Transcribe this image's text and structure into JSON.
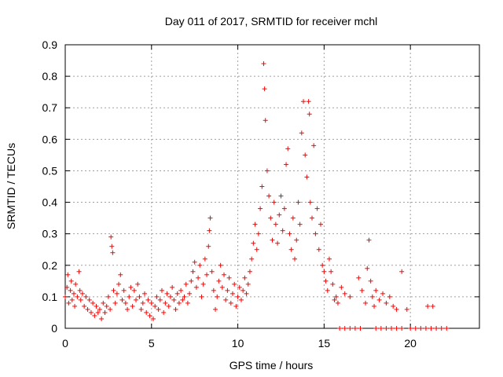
{
  "chart_data": {
    "type": "scatter",
    "title": "Day 011 of 2017, SRMTID for receiver mchl",
    "xlabel": "GPS time / hours",
    "ylabel": "SRMTID / TECUs",
    "xlim": [
      0,
      24
    ],
    "ylim": [
      0,
      0.9
    ],
    "xticks": [
      0,
      5,
      10,
      15,
      20
    ],
    "xtick_labels": [
      "0",
      "5",
      "10",
      "15",
      "20"
    ],
    "yticks": [
      0,
      0.1,
      0.2,
      0.3,
      0.4,
      0.5,
      0.6,
      0.7,
      0.8,
      0.9
    ],
    "ytick_labels": [
      "0",
      "0.1",
      "0.2",
      "0.3",
      "0.4",
      "0.5",
      "0.6",
      "0.7",
      "0.8",
      "0.9"
    ],
    "grid": true,
    "marker": "+",
    "series": [
      {
        "name": "SRMTID",
        "color": "#ff0000",
        "points": [
          [
            0.0,
            0.1
          ],
          [
            0.1,
            0.13
          ],
          [
            0.15,
            0.17
          ],
          [
            0.2,
            0.08
          ],
          [
            0.3,
            0.12
          ],
          [
            0.35,
            0.15
          ],
          [
            0.4,
            0.09
          ],
          [
            0.5,
            0.11
          ],
          [
            0.55,
            0.07
          ],
          [
            0.6,
            0.14
          ],
          [
            0.7,
            0.1
          ],
          [
            0.8,
            0.18
          ],
          [
            0.85,
            0.12
          ],
          [
            0.9,
            0.09
          ],
          [
            1.0,
            0.11
          ],
          [
            1.1,
            0.07
          ],
          [
            1.2,
            0.1
          ],
          [
            1.3,
            0.06
          ],
          [
            1.4,
            0.09
          ],
          [
            1.5,
            0.05
          ],
          [
            1.6,
            0.08
          ],
          [
            1.7,
            0.04
          ],
          [
            1.8,
            0.07
          ],
          [
            1.9,
            0.05
          ],
          [
            2.0,
            0.06
          ],
          [
            2.1,
            0.03
          ],
          [
            2.2,
            0.08
          ],
          [
            2.3,
            0.05
          ],
          [
            2.4,
            0.07
          ],
          [
            2.5,
            0.1
          ],
          [
            2.6,
            0.06
          ],
          [
            2.65,
            0.29
          ],
          [
            2.7,
            0.26
          ],
          [
            2.75,
            0.24
          ],
          [
            2.8,
            0.12
          ],
          [
            2.9,
            0.08
          ],
          [
            3.0,
            0.11
          ],
          [
            3.1,
            0.14
          ],
          [
            3.2,
            0.17
          ],
          [
            3.3,
            0.09
          ],
          [
            3.4,
            0.12
          ],
          [
            3.5,
            0.08
          ],
          [
            3.6,
            0.06
          ],
          [
            3.7,
            0.1
          ],
          [
            3.8,
            0.13
          ],
          [
            3.9,
            0.07
          ],
          [
            4.0,
            0.12
          ],
          [
            4.1,
            0.09
          ],
          [
            4.2,
            0.14
          ],
          [
            4.3,
            0.1
          ],
          [
            4.4,
            0.06
          ],
          [
            4.5,
            0.08
          ],
          [
            4.6,
            0.11
          ],
          [
            4.7,
            0.05
          ],
          [
            4.8,
            0.09
          ],
          [
            4.9,
            0.04
          ],
          [
            5.0,
            0.08
          ],
          [
            5.1,
            0.03
          ],
          [
            5.2,
            0.07
          ],
          [
            5.3,
            0.1
          ],
          [
            5.4,
            0.06
          ],
          [
            5.5,
            0.09
          ],
          [
            5.6,
            0.12
          ],
          [
            5.7,
            0.05
          ],
          [
            5.8,
            0.08
          ],
          [
            5.9,
            0.11
          ],
          [
            6.0,
            0.07
          ],
          [
            6.1,
            0.1
          ],
          [
            6.2,
            0.13
          ],
          [
            6.3,
            0.09
          ],
          [
            6.4,
            0.06
          ],
          [
            6.5,
            0.11
          ],
          [
            6.6,
            0.08
          ],
          [
            6.7,
            0.12
          ],
          [
            6.8,
            0.09
          ],
          [
            6.9,
            0.1
          ],
          [
            7.0,
            0.14
          ],
          [
            7.1,
            0.08
          ],
          [
            7.2,
            0.11
          ],
          [
            7.3,
            0.15
          ],
          [
            7.4,
            0.18
          ],
          [
            7.5,
            0.21
          ],
          [
            7.6,
            0.13
          ],
          [
            7.7,
            0.16
          ],
          [
            7.8,
            0.2
          ],
          [
            7.9,
            0.1
          ],
          [
            8.0,
            0.14
          ],
          [
            8.1,
            0.22
          ],
          [
            8.2,
            0.17
          ],
          [
            8.3,
            0.26
          ],
          [
            8.35,
            0.31
          ],
          [
            8.4,
            0.35
          ],
          [
            8.5,
            0.18
          ],
          [
            8.6,
            0.12
          ],
          [
            8.7,
            0.06
          ],
          [
            8.8,
            0.1
          ],
          [
            8.9,
            0.15
          ],
          [
            9.0,
            0.2
          ],
          [
            9.1,
            0.13
          ],
          [
            9.2,
            0.17
          ],
          [
            9.3,
            0.09
          ],
          [
            9.4,
            0.12
          ],
          [
            9.5,
            0.16
          ],
          [
            9.6,
            0.08
          ],
          [
            9.7,
            0.11
          ],
          [
            9.8,
            0.14
          ],
          [
            9.9,
            0.07
          ],
          [
            10.0,
            0.1
          ],
          [
            10.1,
            0.13
          ],
          [
            10.2,
            0.09
          ],
          [
            10.3,
            0.12
          ],
          [
            10.4,
            0.16
          ],
          [
            10.5,
            0.11
          ],
          [
            10.6,
            0.14
          ],
          [
            10.7,
            0.18
          ],
          [
            10.8,
            0.22
          ],
          [
            10.9,
            0.27
          ],
          [
            11.0,
            0.33
          ],
          [
            11.1,
            0.25
          ],
          [
            11.2,
            0.3
          ],
          [
            11.3,
            0.38
          ],
          [
            11.4,
            0.45
          ],
          [
            11.5,
            0.84
          ],
          [
            11.55,
            0.76
          ],
          [
            11.6,
            0.66
          ],
          [
            11.7,
            0.5
          ],
          [
            11.8,
            0.42
          ],
          [
            11.9,
            0.35
          ],
          [
            12.0,
            0.28
          ],
          [
            12.1,
            0.4
          ],
          [
            12.2,
            0.33
          ],
          [
            12.3,
            0.27
          ],
          [
            12.4,
            0.36
          ],
          [
            12.5,
            0.42
          ],
          [
            12.6,
            0.31
          ],
          [
            12.7,
            0.38
          ],
          [
            12.8,
            0.52
          ],
          [
            12.9,
            0.57
          ],
          [
            13.0,
            0.3
          ],
          [
            13.1,
            0.25
          ],
          [
            13.2,
            0.35
          ],
          [
            13.3,
            0.22
          ],
          [
            13.4,
            0.28
          ],
          [
            13.5,
            0.4
          ],
          [
            13.6,
            0.33
          ],
          [
            13.7,
            0.62
          ],
          [
            13.8,
            0.72
          ],
          [
            13.9,
            0.55
          ],
          [
            14.0,
            0.48
          ],
          [
            14.1,
            0.72
          ],
          [
            14.15,
            0.68
          ],
          [
            14.2,
            0.4
          ],
          [
            14.3,
            0.35
          ],
          [
            14.4,
            0.58
          ],
          [
            14.5,
            0.3
          ],
          [
            14.6,
            0.38
          ],
          [
            14.7,
            0.25
          ],
          [
            14.8,
            0.33
          ],
          [
            14.9,
            0.2
          ],
          [
            15.0,
            0.18
          ],
          [
            15.1,
            0.15
          ],
          [
            15.2,
            0.12
          ],
          [
            15.3,
            0.22
          ],
          [
            15.4,
            0.18
          ],
          [
            15.5,
            0.14
          ],
          [
            15.6,
            0.09
          ],
          [
            15.7,
            0.1
          ],
          [
            15.8,
            0.08
          ],
          [
            16.0,
            0.13
          ],
          [
            16.2,
            0.11
          ],
          [
            16.5,
            0.1
          ],
          [
            17.0,
            0.16
          ],
          [
            17.2,
            0.12
          ],
          [
            17.4,
            0.08
          ],
          [
            17.5,
            0.19
          ],
          [
            17.6,
            0.28
          ],
          [
            17.7,
            0.15
          ],
          [
            17.8,
            0.1
          ],
          [
            17.9,
            0.07
          ],
          [
            18.0,
            0.12
          ],
          [
            18.2,
            0.09
          ],
          [
            18.4,
            0.11
          ],
          [
            18.6,
            0.08
          ],
          [
            18.8,
            0.1
          ],
          [
            19.0,
            0.07
          ],
          [
            19.2,
            0.06
          ],
          [
            19.5,
            0.18
          ],
          [
            19.8,
            0.06
          ],
          [
            21.0,
            0.07
          ],
          [
            21.3,
            0.07
          ],
          [
            15.9,
            0.0
          ],
          [
            16.2,
            0.0
          ],
          [
            16.5,
            0.0
          ],
          [
            16.8,
            0.0
          ],
          [
            17.1,
            0.0
          ],
          [
            18.0,
            0.0
          ],
          [
            18.3,
            0.0
          ],
          [
            18.6,
            0.0
          ],
          [
            18.9,
            0.0
          ],
          [
            19.2,
            0.0
          ],
          [
            19.5,
            0.0
          ],
          [
            20.0,
            0.0
          ],
          [
            20.3,
            0.0
          ],
          [
            20.6,
            0.0
          ],
          [
            20.9,
            0.0
          ],
          [
            21.2,
            0.0
          ],
          [
            21.5,
            0.0
          ],
          [
            21.8,
            0.0
          ],
          [
            22.1,
            0.0
          ]
        ]
      }
    ]
  }
}
